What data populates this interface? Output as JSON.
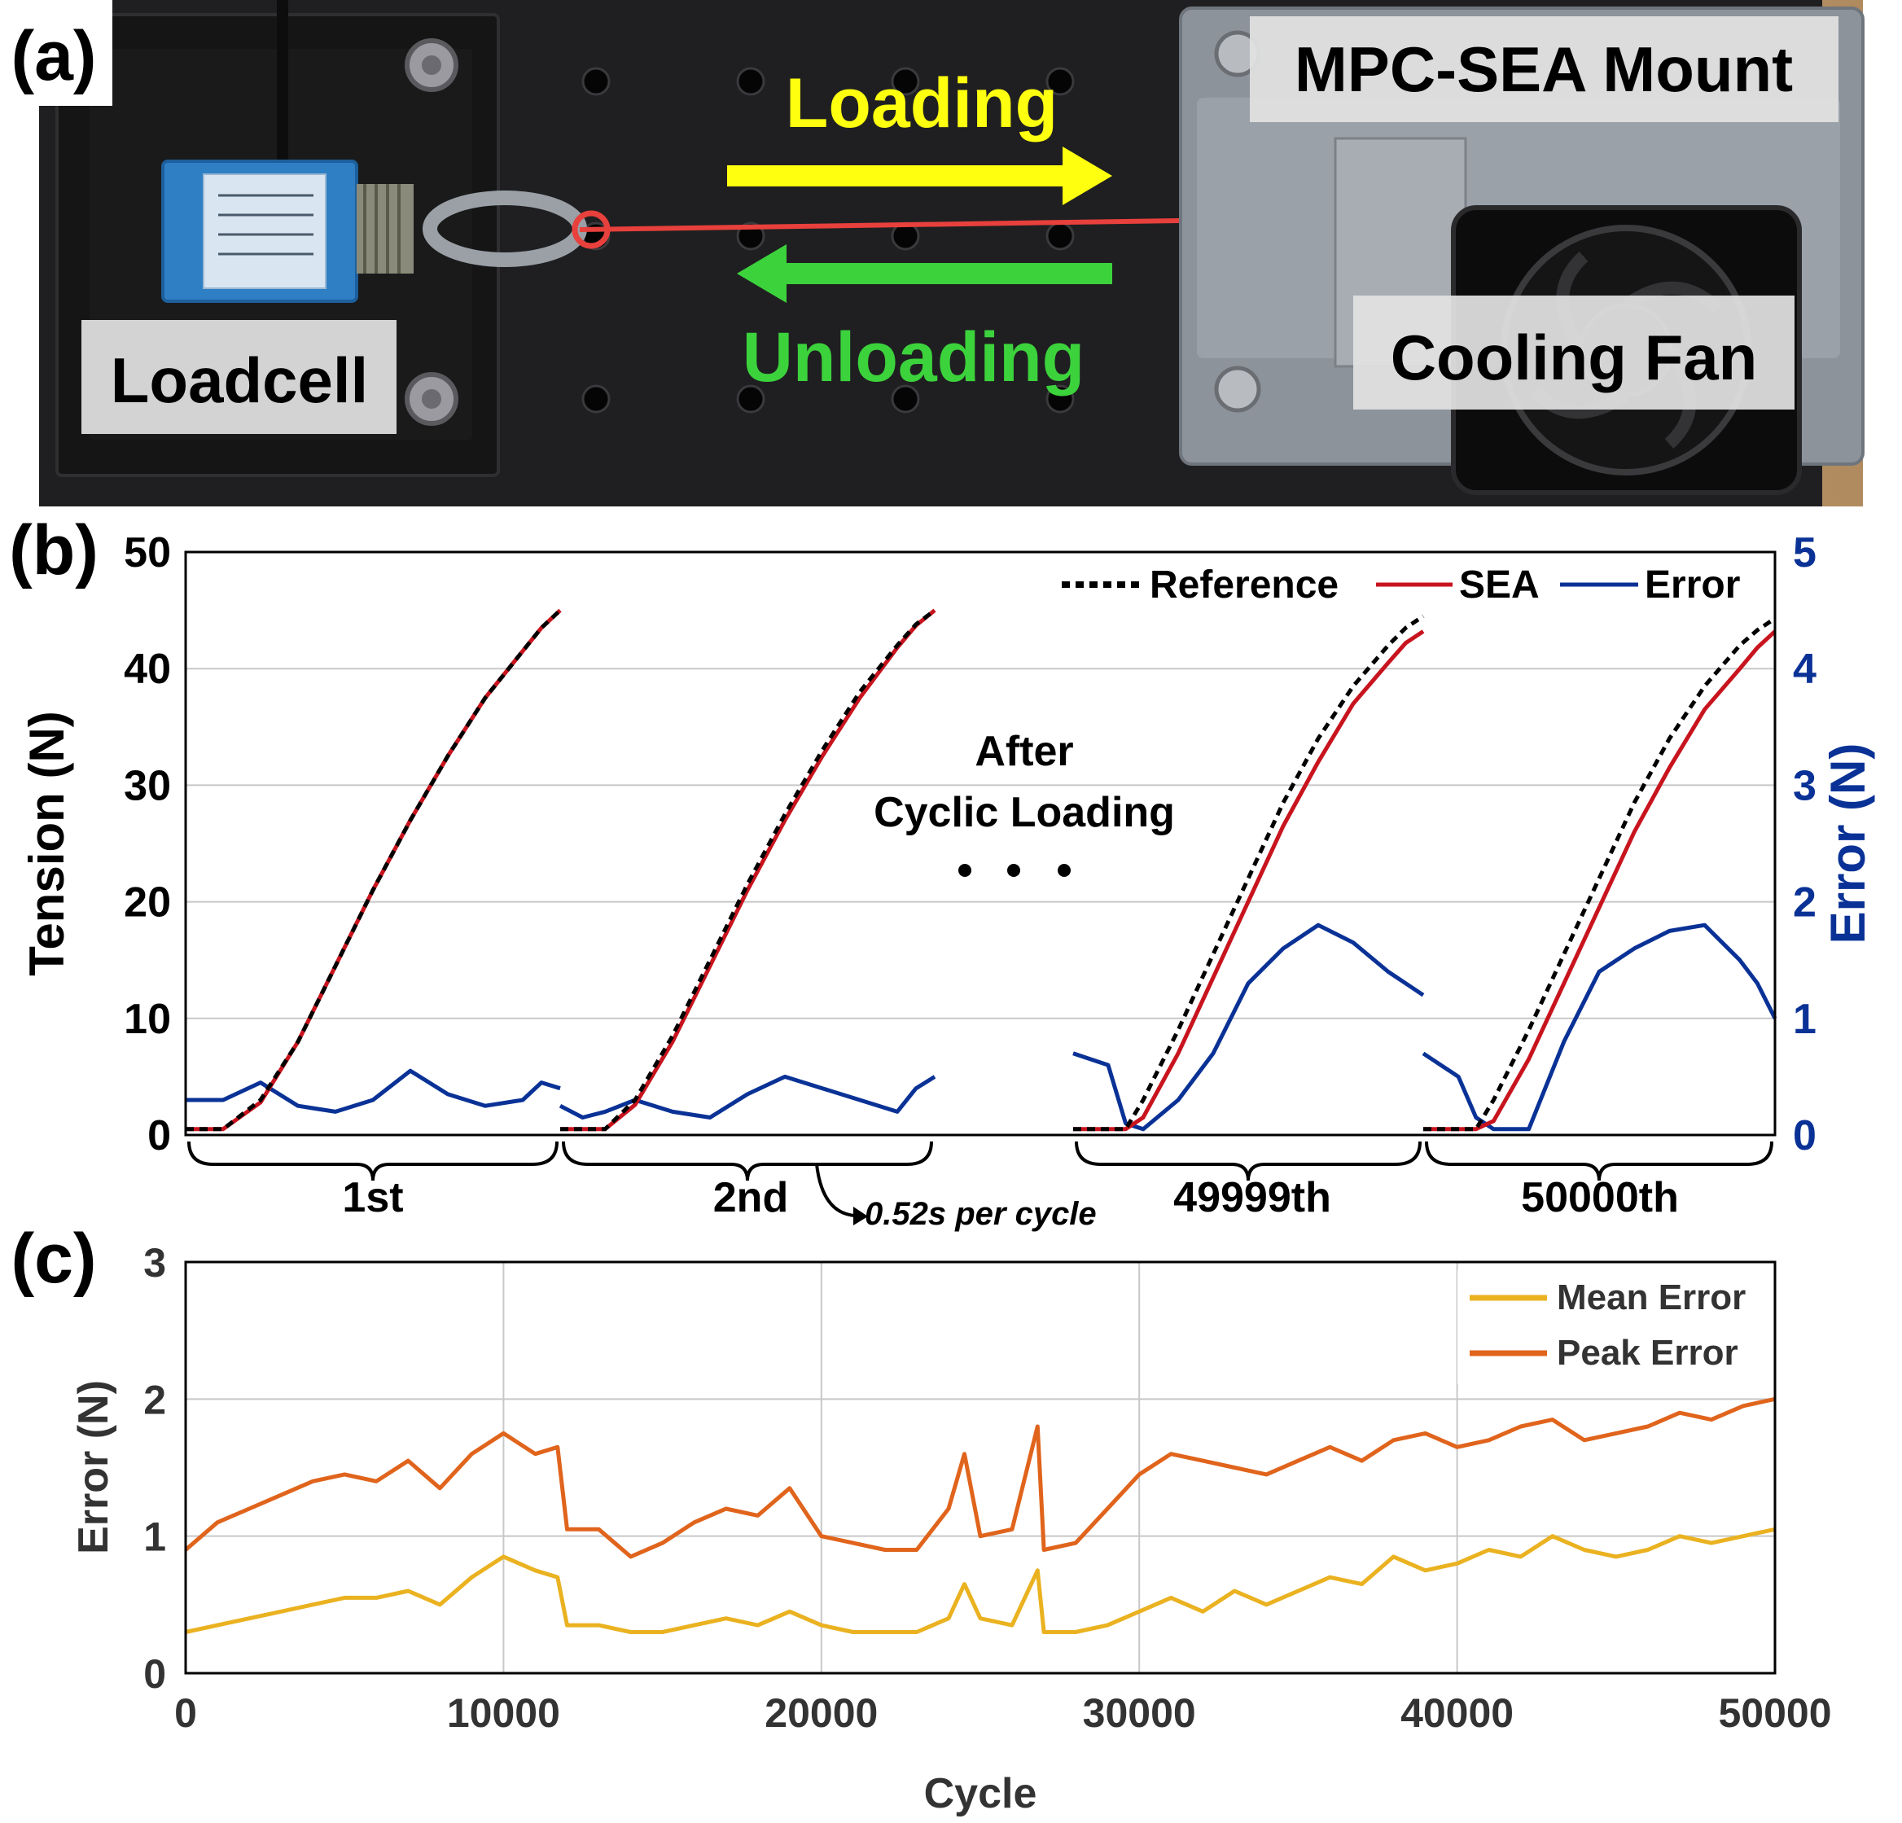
{
  "panel_labels": {
    "a": "(a)",
    "b": "(b)",
    "c": "(c)"
  },
  "photo": {
    "labels": {
      "mount": "MPC-SEA Mount",
      "loadcell": "Loadcell",
      "fan": "Cooling Fan",
      "loading": "Loading",
      "unloading": "Unloading"
    },
    "colors": {
      "loading": "#ffff10",
      "unloading": "#3cd23c",
      "cable": "#e8403c",
      "board": "#1f1f21"
    }
  },
  "chart_data": [
    {
      "type": "line",
      "panel": "b",
      "title": "",
      "ylabel_left": "Tension (N)",
      "ylabel_right": "Error (N)",
      "ylim_left": [
        0,
        50
      ],
      "ylim_right": [
        0,
        5
      ],
      "yticks_left": [
        "0",
        "10",
        "20",
        "30",
        "40",
        "50"
      ],
      "yticks_right": [
        "0",
        "1",
        "2",
        "3",
        "4",
        "5"
      ],
      "grid": true,
      "legend_position": "top-right",
      "legend": [
        "Reference",
        "SEA",
        "Error"
      ],
      "series_colors": {
        "Reference": "#000000",
        "SEA": "#c8141e",
        "Error": "#0a3296"
      },
      "cycles": [
        {
          "label": "1st",
          "x": [
            0.0,
            0.06,
            0.1,
            0.2,
            0.3,
            0.4,
            0.5,
            0.6,
            0.7,
            0.8,
            0.9,
            0.95,
            1.0
          ],
          "reference": [
            0.5,
            0.5,
            0.5,
            3,
            8,
            14.5,
            21,
            27,
            32.5,
            37.5,
            41.5,
            43.5,
            45
          ],
          "sea": [
            0.5,
            0.5,
            0.5,
            2.8,
            8,
            14.5,
            21,
            27,
            32.5,
            37.5,
            41.5,
            43.5,
            45
          ],
          "error": [
            0.3,
            0.3,
            0.3,
            0.45,
            0.25,
            0.2,
            0.3,
            0.55,
            0.35,
            0.25,
            0.3,
            0.45,
            0.4
          ]
        },
        {
          "label": "2nd",
          "x": [
            0.0,
            0.06,
            0.12,
            0.2,
            0.3,
            0.4,
            0.5,
            0.6,
            0.7,
            0.8,
            0.9,
            0.95,
            1.0
          ],
          "reference": [
            0.5,
            0.5,
            0.5,
            3,
            8.5,
            15,
            21.5,
            27.5,
            33,
            38,
            42,
            43.8,
            45
          ],
          "sea": [
            0.5,
            0.5,
            0.5,
            2.6,
            8,
            14.5,
            21,
            27,
            32.5,
            37.5,
            41.8,
            43.7,
            45
          ],
          "error": [
            0.25,
            0.15,
            0.2,
            0.3,
            0.2,
            0.15,
            0.35,
            0.5,
            0.4,
            0.3,
            0.2,
            0.4,
            0.5
          ]
        },
        {
          "label": "49999th",
          "x": [
            0.0,
            0.1,
            0.15,
            0.2,
            0.3,
            0.4,
            0.5,
            0.6,
            0.7,
            0.8,
            0.9,
            0.95,
            1.0
          ],
          "reference": [
            0.5,
            0.5,
            0.5,
            3,
            9,
            15.5,
            22,
            28.5,
            34,
            38.5,
            42,
            43.5,
            44.5
          ],
          "sea": [
            0.5,
            0.5,
            0.5,
            1.5,
            7,
            13.5,
            20,
            26.5,
            32,
            37,
            40.5,
            42.2,
            43.2
          ],
          "error": [
            0.7,
            0.6,
            0.1,
            0.05,
            0.3,
            0.7,
            1.3,
            1.6,
            1.8,
            1.65,
            1.4,
            1.3,
            1.2
          ]
        },
        {
          "label": "50000th",
          "x": [
            0.0,
            0.1,
            0.15,
            0.2,
            0.3,
            0.4,
            0.5,
            0.6,
            0.7,
            0.8,
            0.9,
            0.95,
            1.0
          ],
          "reference": [
            0.5,
            0.5,
            0.5,
            3,
            9,
            15.5,
            22,
            28.5,
            34,
            38.5,
            42,
            43.3,
            44.3
          ],
          "sea": [
            0.5,
            0.5,
            0.5,
            1.2,
            6.5,
            13,
            19.5,
            26,
            31.5,
            36.5,
            40,
            41.8,
            43.2
          ],
          "error": [
            0.7,
            0.5,
            0.15,
            0.05,
            0.05,
            0.8,
            1.4,
            1.6,
            1.75,
            1.8,
            1.5,
            1.3,
            1.0
          ]
        }
      ],
      "annotations": {
        "after_line1": "After",
        "after_line2": "Cyclic Loading",
        "period": "0.52s per cycle"
      }
    },
    {
      "type": "line",
      "panel": "c",
      "title": "",
      "xlabel": "Cycle",
      "ylabel": "Error (N)",
      "xlim": [
        0,
        50000
      ],
      "ylim": [
        0,
        3
      ],
      "xticks": [
        "0",
        "10000",
        "20000",
        "30000",
        "40000",
        "50000"
      ],
      "yticks": [
        "0",
        "1",
        "2",
        "3"
      ],
      "grid": true,
      "legend_position": "top-right",
      "x": [
        0,
        1000,
        2000,
        3000,
        4000,
        5000,
        6000,
        7000,
        8000,
        9000,
        10000,
        11000,
        11700,
        12000,
        13000,
        14000,
        15000,
        16000,
        17000,
        18000,
        19000,
        20000,
        21000,
        22000,
        23000,
        24000,
        24500,
        25000,
        26000,
        26800,
        27000,
        28000,
        29000,
        30000,
        31000,
        32000,
        33000,
        34000,
        35000,
        36000,
        37000,
        38000,
        39000,
        40000,
        41000,
        42000,
        43000,
        44000,
        45000,
        46000,
        47000,
        48000,
        49000,
        50000
      ],
      "series": [
        {
          "name": "Mean Error",
          "color": "#eab220",
          "values": [
            0.3,
            0.35,
            0.4,
            0.45,
            0.5,
            0.55,
            0.55,
            0.6,
            0.5,
            0.7,
            0.85,
            0.75,
            0.7,
            0.35,
            0.35,
            0.3,
            0.3,
            0.35,
            0.4,
            0.35,
            0.45,
            0.35,
            0.3,
            0.3,
            0.3,
            0.4,
            0.65,
            0.4,
            0.35,
            0.75,
            0.3,
            0.3,
            0.35,
            0.45,
            0.55,
            0.45,
            0.6,
            0.5,
            0.6,
            0.7,
            0.65,
            0.85,
            0.75,
            0.8,
            0.9,
            0.85,
            1.0,
            0.9,
            0.85,
            0.9,
            1.0,
            0.95,
            1.0,
            1.05
          ]
        },
        {
          "name": "Peak Error",
          "color": "#e0641c",
          "values": [
            0.9,
            1.1,
            1.2,
            1.3,
            1.4,
            1.45,
            1.4,
            1.55,
            1.35,
            1.6,
            1.75,
            1.6,
            1.65,
            1.05,
            1.05,
            0.85,
            0.95,
            1.1,
            1.2,
            1.15,
            1.35,
            1.0,
            0.95,
            0.9,
            0.9,
            1.2,
            1.6,
            1.0,
            1.05,
            1.8,
            0.9,
            0.95,
            1.2,
            1.45,
            1.6,
            1.55,
            1.5,
            1.45,
            1.55,
            1.65,
            1.55,
            1.7,
            1.75,
            1.65,
            1.7,
            1.8,
            1.85,
            1.7,
            1.75,
            1.8,
            1.9,
            1.85,
            1.95,
            2.0
          ]
        }
      ]
    }
  ]
}
